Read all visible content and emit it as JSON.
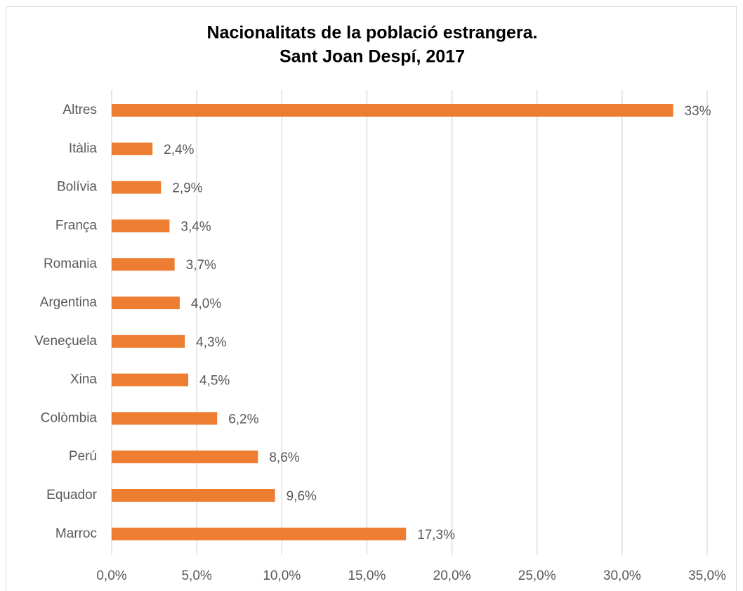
{
  "chart_data": {
    "type": "barh",
    "title": [
      "Nacionalitats de la població estrangera.",
      "Sant Joan Despí, 2017"
    ],
    "categories": [
      "Altres",
      "Itàlia",
      "Bolívia",
      "França",
      "Romania",
      "Argentina",
      "Veneçuela",
      "Xina",
      "Colòmbia",
      "Perú",
      "Equador",
      "Marroc"
    ],
    "values": [
      33,
      2.4,
      2.9,
      3.4,
      3.7,
      4.0,
      4.3,
      4.5,
      6.2,
      8.6,
      9.6,
      17.3
    ],
    "value_labels": [
      "33%",
      "2,4%",
      "2,9%",
      "3,4%",
      "3,7%",
      "4,0%",
      "4,3%",
      "4,5%",
      "6,2%",
      "8,6%",
      "9,6%",
      "17,3%"
    ],
    "color": "#ed7d31",
    "xlim": [
      0,
      35
    ],
    "xticks": [
      {
        "value": 0,
        "label": "0,0%"
      },
      {
        "value": 5,
        "label": "5,0%"
      },
      {
        "value": 10,
        "label": "10,0%"
      },
      {
        "value": 15,
        "label": "15,0%"
      },
      {
        "value": 20,
        "label": "20,0%"
      },
      {
        "value": 25,
        "label": "25,0%"
      },
      {
        "value": 30,
        "label": "30,0%"
      },
      {
        "value": 35,
        "label": "35,0%"
      }
    ],
    "grid": true
  }
}
